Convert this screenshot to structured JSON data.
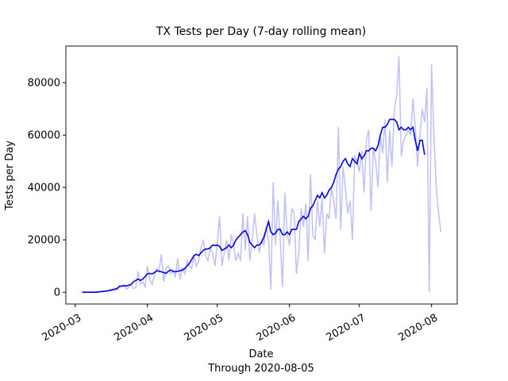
{
  "chart_data": {
    "type": "line",
    "title": "TX Tests per Day (7-day rolling mean)",
    "y_label": "Tests per Day",
    "x_label": "Date",
    "subtitle": "Through 2020-08-05",
    "x": [
      "2020-03-04",
      "2020-03-05",
      "2020-03-06",
      "2020-03-07",
      "2020-03-08",
      "2020-03-09",
      "2020-03-10",
      "2020-03-11",
      "2020-03-12",
      "2020-03-13",
      "2020-03-14",
      "2020-03-15",
      "2020-03-16",
      "2020-03-17",
      "2020-03-18",
      "2020-03-19",
      "2020-03-20",
      "2020-03-21",
      "2020-03-22",
      "2020-03-23",
      "2020-03-24",
      "2020-03-25",
      "2020-03-26",
      "2020-03-27",
      "2020-03-28",
      "2020-03-29",
      "2020-03-30",
      "2020-03-31",
      "2020-04-01",
      "2020-04-02",
      "2020-04-03",
      "2020-04-04",
      "2020-04-05",
      "2020-04-06",
      "2020-04-07",
      "2020-04-08",
      "2020-04-09",
      "2020-04-10",
      "2020-04-11",
      "2020-04-12",
      "2020-04-13",
      "2020-04-14",
      "2020-04-15",
      "2020-04-16",
      "2020-04-17",
      "2020-04-18",
      "2020-04-19",
      "2020-04-20",
      "2020-04-21",
      "2020-04-22",
      "2020-04-23",
      "2020-04-24",
      "2020-04-25",
      "2020-04-26",
      "2020-04-27",
      "2020-04-28",
      "2020-04-29",
      "2020-04-30",
      "2020-05-01",
      "2020-05-02",
      "2020-05-03",
      "2020-05-04",
      "2020-05-05",
      "2020-05-06",
      "2020-05-07",
      "2020-05-08",
      "2020-05-09",
      "2020-05-10",
      "2020-05-11",
      "2020-05-12",
      "2020-05-13",
      "2020-05-14",
      "2020-05-15",
      "2020-05-16",
      "2020-05-17",
      "2020-05-18",
      "2020-05-19",
      "2020-05-20",
      "2020-05-21",
      "2020-05-22",
      "2020-05-23",
      "2020-05-24",
      "2020-05-25",
      "2020-05-26",
      "2020-05-27",
      "2020-05-28",
      "2020-05-29",
      "2020-05-30",
      "2020-05-31",
      "2020-06-01",
      "2020-06-02",
      "2020-06-03",
      "2020-06-04",
      "2020-06-05",
      "2020-06-06",
      "2020-06-07",
      "2020-06-08",
      "2020-06-09",
      "2020-06-10",
      "2020-06-11",
      "2020-06-12",
      "2020-06-13",
      "2020-06-14",
      "2020-06-15",
      "2020-06-16",
      "2020-06-17",
      "2020-06-18",
      "2020-06-19",
      "2020-06-20",
      "2020-06-21",
      "2020-06-22",
      "2020-06-23",
      "2020-06-24",
      "2020-06-25",
      "2020-06-26",
      "2020-06-27",
      "2020-06-28",
      "2020-06-29",
      "2020-06-30",
      "2020-07-01",
      "2020-07-02",
      "2020-07-03",
      "2020-07-04",
      "2020-07-05",
      "2020-07-06",
      "2020-07-07",
      "2020-07-08",
      "2020-07-09",
      "2020-07-10",
      "2020-07-11",
      "2020-07-12",
      "2020-07-13",
      "2020-07-14",
      "2020-07-15",
      "2020-07-16",
      "2020-07-17",
      "2020-07-18",
      "2020-07-19",
      "2020-07-20",
      "2020-07-21",
      "2020-07-22",
      "2020-07-23",
      "2020-07-24",
      "2020-07-25",
      "2020-07-26",
      "2020-07-27",
      "2020-07-28",
      "2020-07-29",
      "2020-07-30",
      "2020-07-31",
      "2020-08-01",
      "2020-08-02",
      "2020-08-03",
      "2020-08-04",
      "2020-08-05"
    ],
    "series": [
      {
        "color": "#bfbffa",
        "values": [
          0,
          0,
          0,
          0,
          0,
          100,
          200,
          200,
          300,
          400,
          500,
          800,
          1000,
          1200,
          1500,
          900,
          2500,
          2000,
          2800,
          1200,
          2000,
          3000,
          1500,
          1800,
          8000,
          3000,
          4000,
          2000,
          10000,
          5000,
          3000,
          6000,
          9000,
          8000,
          14500,
          4000,
          9000,
          10000,
          7000,
          8000,
          6000,
          13000,
          5000,
          9000,
          7000,
          12000,
          10000,
          9000,
          14000,
          10000,
          12000,
          17000,
          20000,
          14000,
          12000,
          17000,
          15000,
          10000,
          19000,
          29000,
          10000,
          15000,
          20000,
          12000,
          22000,
          18000,
          12000,
          15000,
          12000,
          30000,
          16000,
          29000,
          12000,
          20000,
          30000,
          22000,
          15000,
          20000,
          18000,
          25000,
          20000,
          1000,
          42000,
          18000,
          35000,
          20000,
          2000,
          38000,
          22000,
          18000,
          32000,
          30000,
          7000,
          15000,
          32000,
          25000,
          34000,
          12000,
          45000,
          22000,
          20000,
          35000,
          25000,
          36000,
          15000,
          30000,
          28000,
          40000,
          35000,
          28000,
          63000,
          24000,
          48000,
          40000,
          30000,
          35000,
          20000,
          52000,
          50000,
          46000,
          54000,
          38000,
          58000,
          62000,
          31000,
          55000,
          50000,
          40000,
          60000,
          53000,
          66000,
          42000,
          62000,
          48000,
          70000,
          75000,
          90000,
          52000,
          58000,
          60000,
          62000,
          60000,
          74000,
          63000,
          48000,
          60000,
          70000,
          65000,
          78000,
          0,
          87000,
          60000,
          40000,
          30000,
          23000
        ]
      },
      {
        "color": "#0000e6",
        "values": [
          0,
          0,
          0,
          0,
          0,
          0,
          0,
          100,
          200,
          300,
          400,
          500,
          700,
          900,
          1100,
          1400,
          2200,
          2400,
          2500,
          2400,
          2700,
          3000,
          4000,
          4500,
          5000,
          4500,
          5000,
          6000,
          7000,
          7200,
          7000,
          7500,
          8200,
          8000,
          7800,
          7500,
          7200,
          8000,
          8500,
          8000,
          7800,
          8000,
          8200,
          8500,
          9000,
          10000,
          11000,
          12500,
          14000,
          14500,
          14000,
          15000,
          16000,
          16500,
          16500,
          17000,
          18000,
          17800,
          18000,
          17500,
          16000,
          16500,
          17000,
          18000,
          17000,
          18000,
          20000,
          21000,
          22000,
          23000,
          23500,
          22000,
          19000,
          18000,
          17000,
          18000,
          18000,
          19000,
          21000,
          24000,
          27000,
          23000,
          22000,
          22500,
          24000,
          24000,
          22000,
          22000,
          23000,
          22000,
          24000,
          24000,
          24000,
          27000,
          28000,
          29000,
          28000,
          29000,
          32000,
          33000,
          35000,
          37000,
          36000,
          38000,
          36000,
          37000,
          39000,
          40000,
          42000,
          45000,
          47000,
          48000,
          50000,
          51000,
          49000,
          48000,
          51000,
          50000,
          49000,
          53000,
          51000,
          52000,
          54000,
          54000,
          55000,
          55000,
          54000,
          56000,
          60000,
          63000,
          63000,
          64000,
          66000,
          66000,
          66000,
          65000,
          62000,
          63000,
          62000,
          62000,
          63000,
          62000,
          63000,
          58000,
          54000,
          58000,
          58000,
          52500,
          null,
          null,
          null,
          null,
          null,
          null,
          null
        ]
      }
    ],
    "xlim": [
      "2020-02-26",
      "2020-08-12"
    ],
    "xticks": [
      {
        "value": "2020-03-01",
        "label": "2020-03"
      },
      {
        "value": "2020-04-01",
        "label": "2020-04"
      },
      {
        "value": "2020-05-01",
        "label": "2020-05"
      },
      {
        "value": "2020-06-01",
        "label": "2020-06"
      },
      {
        "value": "2020-07-01",
        "label": "2020-07"
      },
      {
        "value": "2020-08-01",
        "label": "2020-08"
      }
    ],
    "ylim": [
      -4500,
      94000
    ],
    "yticks": [
      0,
      20000,
      40000,
      60000,
      80000
    ]
  }
}
